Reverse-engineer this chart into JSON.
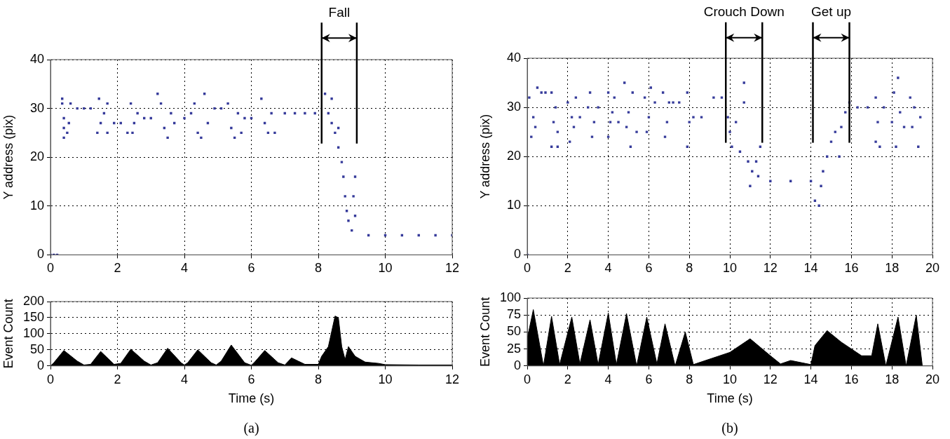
{
  "chart_data": [
    {
      "type": "scatter",
      "ylabel": "Y address (pix)",
      "marker": "square",
      "grid": true,
      "xlim": [
        0,
        12
      ],
      "xticks": [
        0,
        2,
        4,
        6,
        8,
        10,
        12
      ],
      "ylim": [
        0,
        40
      ],
      "yticks": [
        0,
        10,
        20,
        30,
        40
      ],
      "ref_lines": [
        {
          "axis": "x",
          "value": 8.1,
          "label": "Fall"
        },
        {
          "axis": "x",
          "value": 9.15
        }
      ],
      "series": [
        {
          "color": "#353a9a",
          "x": [
            0,
            0.1,
            0.2,
            0.8,
            1.0,
            1.2,
            0.35,
            0.4,
            0.4,
            0.4,
            0.35,
            0.5,
            0.6,
            0.55,
            1.45,
            1.4,
            1.5,
            1.6,
            1.7,
            1.7,
            1.9,
            2.1,
            2.8,
            3.0,
            4.0,
            4.9,
            5.1,
            5.8,
            6.0,
            2.4,
            2.3,
            2.5,
            2.6,
            2.45,
            3.2,
            3.3,
            3.4,
            3.5,
            3.6,
            3.7,
            4.3,
            4.4,
            4.5,
            4.6,
            4.7,
            4.2,
            5.3,
            5.4,
            5.5,
            5.6,
            5.7,
            6.3,
            6.4,
            6.5,
            6.6,
            6.7,
            7.0,
            7.3,
            7.6,
            7.9,
            8.2,
            8.3,
            8.4,
            8.5,
            8.6,
            8.7,
            8.75,
            8.8,
            8.85,
            8.9,
            9.0,
            9.1,
            9.05,
            9.1,
            8.6,
            8.4,
            9.5,
            10,
            10.5,
            11,
            11.5,
            12
          ],
          "values": [
            0,
            0,
            0,
            30,
            30,
            30,
            32,
            24,
            26,
            28,
            31,
            25,
            31,
            27,
            32,
            25,
            27,
            29,
            25,
            31,
            27,
            27,
            28,
            28,
            28,
            30,
            30,
            28,
            28,
            31,
            25,
            27,
            29,
            25,
            33,
            31,
            26,
            24,
            29,
            27,
            31,
            25,
            24,
            33,
            27,
            29,
            31,
            26,
            24,
            29,
            25,
            32,
            27,
            25,
            29,
            25,
            29,
            29,
            29,
            29,
            33,
            29,
            27,
            25,
            22,
            19,
            16,
            12,
            9,
            7,
            5,
            16,
            12,
            8,
            26,
            32,
            4,
            4,
            4,
            4,
            4,
            4
          ]
        }
      ]
    },
    {
      "type": "area",
      "xlabel": "Time (s)",
      "ylabel": "Event Count",
      "grid": true,
      "xlim": [
        0,
        12
      ],
      "xticks": [
        0,
        2,
        4,
        6,
        8,
        10,
        12
      ],
      "ylim": [
        0,
        200
      ],
      "yticks": [
        0,
        50,
        100,
        150,
        200
      ],
      "annotations": [
        "(a)"
      ],
      "series": [
        {
          "color": "#000000",
          "x": [
            0,
            0.1,
            0.4,
            0.8,
            1.0,
            1.2,
            1.5,
            1.9,
            2.1,
            2.4,
            2.8,
            3.0,
            3.2,
            3.5,
            3.9,
            4.0,
            4.1,
            4.4,
            4.8,
            4.95,
            5.1,
            5.4,
            5.8,
            6.0,
            6.1,
            6.4,
            6.8,
            7.0,
            7.2,
            7.4,
            7.6,
            8.0,
            8.1,
            8.3,
            8.5,
            8.6,
            8.7,
            8.8,
            8.9,
            9.1,
            9.4,
            9.8,
            10.0,
            11,
            12
          ],
          "values": [
            0,
            10,
            48,
            15,
            3,
            5,
            45,
            5,
            8,
            52,
            15,
            3,
            10,
            55,
            10,
            3,
            10,
            50,
            10,
            3,
            15,
            65,
            10,
            2,
            12,
            48,
            10,
            3,
            25,
            15,
            5,
            5,
            30,
            60,
            155,
            150,
            60,
            20,
            60,
            30,
            12,
            8,
            4,
            3,
            3
          ]
        }
      ]
    },
    {
      "type": "scatter",
      "ylabel": "Y address (pix)",
      "marker": "square",
      "grid": true,
      "xlim": [
        0,
        20
      ],
      "xticks": [
        0,
        2,
        4,
        6,
        8,
        10,
        12,
        14,
        16,
        18,
        20
      ],
      "ylim": [
        0,
        40
      ],
      "yticks": [
        0,
        10,
        20,
        30,
        40
      ],
      "ref_lines": [
        {
          "axis": "x",
          "value": 9.8,
          "label": "Crouch Down"
        },
        {
          "axis": "x",
          "value": 11.6
        },
        {
          "axis": "x",
          "value": 14.1,
          "label": "Get up"
        },
        {
          "axis": "x",
          "value": 15.9
        }
      ],
      "series": [
        {
          "color": "#353a9a",
          "x": [
            0,
            0.1,
            0.2,
            0.3,
            0.4,
            0.5,
            0.7,
            0.9,
            1.2,
            1.2,
            1.3,
            1.4,
            1.5,
            1.5,
            2.0,
            2.1,
            2.2,
            2.3,
            2.4,
            2.6,
            3.1,
            3.2,
            3.3,
            3.5,
            3.0,
            4.0,
            4.0,
            4.1,
            4.2,
            4.3,
            4.5,
            4.8,
            4.9,
            5.0,
            5.1,
            5.2,
            5.4,
            5.8,
            5.9,
            6.0,
            6.1,
            6.3,
            6.7,
            6.8,
            6.9,
            7.0,
            7.2,
            7.5,
            7.9,
            7.9,
            8.0,
            8.2,
            8.6,
            9.2,
            9.6,
            9.9,
            10.0,
            10.1,
            10.3,
            10.5,
            10.7,
            10.7,
            10.9,
            11.0,
            11.1,
            11.3,
            11.5,
            11.4,
            12.0,
            13.0,
            14.0,
            14.2,
            14.4,
            14.5,
            14.6,
            14.8,
            15.0,
            15.2,
            15.4,
            15.5,
            15.7,
            15.9,
            16.3,
            16.8,
            17.2,
            17.2,
            17.3,
            17.4,
            17.6,
            18.0,
            18.1,
            18.2,
            18.3,
            18.4,
            18.6,
            18.9,
            19.0,
            19.1,
            19.3,
            19.4
          ],
          "values": [
            0,
            32,
            24,
            28,
            26,
            34,
            33,
            33,
            33,
            22,
            27,
            30,
            22,
            25,
            31,
            23,
            28,
            26,
            32,
            28,
            33,
            24,
            27,
            30,
            30,
            33,
            24,
            27,
            29,
            32,
            27,
            35,
            26,
            29,
            22,
            33,
            25,
            32,
            25,
            28,
            34,
            31,
            33,
            24,
            27,
            31,
            31,
            31,
            33,
            22,
            27,
            28,
            28,
            32,
            32,
            28,
            25,
            22,
            27,
            21,
            35,
            31,
            19,
            14,
            17,
            19,
            22,
            16,
            15,
            15,
            15,
            11,
            10,
            14,
            17,
            20,
            23,
            25,
            20,
            26,
            29,
            31,
            30,
            30,
            32,
            23,
            27,
            22,
            30,
            27,
            33,
            22,
            36,
            29,
            26,
            32,
            26,
            30,
            22,
            28
          ]
        }
      ]
    },
    {
      "type": "area",
      "xlabel": "Time (s)",
      "ylabel": "Event Count",
      "grid": true,
      "xlim": [
        0,
        20
      ],
      "xticks": [
        0,
        2,
        4,
        6,
        8,
        10,
        12,
        14,
        16,
        18,
        20
      ],
      "ylim": [
        0,
        100
      ],
      "yticks": [
        0,
        25,
        50,
        75,
        100
      ],
      "annotations": [
        "(b)"
      ],
      "series": [
        {
          "color": "#000000",
          "x": [
            0,
            0.3,
            0.8,
            1.2,
            1.6,
            2.2,
            2.6,
            3.1,
            3.5,
            4.0,
            4.4,
            4.9,
            5.4,
            5.9,
            6.4,
            6.8,
            7.3,
            7.8,
            8.2,
            9.0,
            10,
            11,
            12,
            12.5,
            13,
            14,
            14.2,
            14.8,
            15.5,
            16.5,
            17,
            17.3,
            17.7,
            18.3,
            18.7,
            19.2,
            19.5
          ],
          "values": [
            40,
            83,
            0,
            73,
            2,
            72,
            3,
            68,
            2,
            78,
            2,
            77,
            0,
            72,
            3,
            62,
            0,
            50,
            2,
            10,
            20,
            40,
            15,
            3,
            8,
            2,
            30,
            52,
            35,
            15,
            15,
            62,
            0,
            72,
            0,
            75,
            0
          ]
        }
      ]
    }
  ]
}
